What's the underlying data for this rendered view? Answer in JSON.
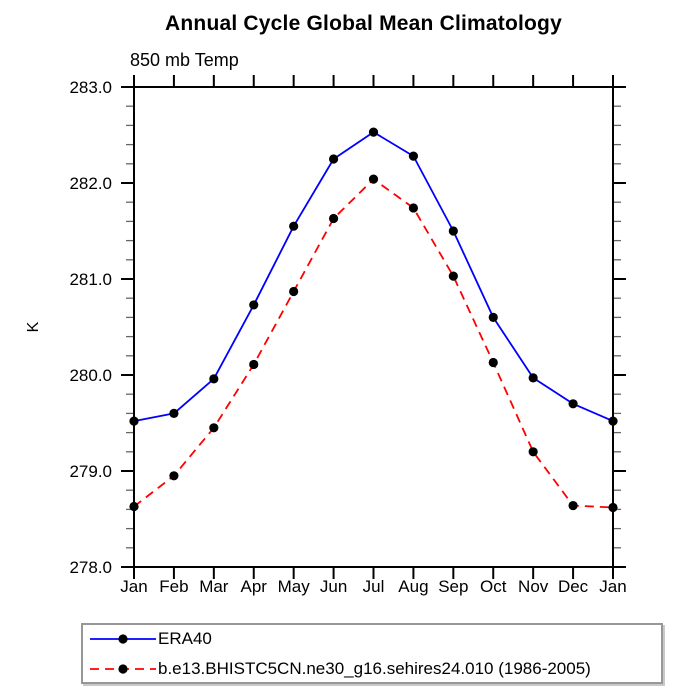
{
  "page": {
    "background": "#ffffff"
  },
  "chart_data": {
    "type": "line",
    "title": "Annual Cycle Global Mean Climatology",
    "subtitle": "850 mb Temp",
    "xlabel": "",
    "ylabel": "K",
    "x_tick_labels": [
      "Jan",
      "Feb",
      "Mar",
      "Apr",
      "May",
      "Jun",
      "Jul",
      "Aug",
      "Sep",
      "Oct",
      "Nov",
      "Dec",
      "Jan"
    ],
    "y_ticks": [
      278.0,
      279.0,
      280.0,
      281.0,
      282.0,
      283.0
    ],
    "y_tick_labels": [
      "278.0",
      "279.0",
      "280.0",
      "281.0",
      "282.0",
      "283.0"
    ],
    "ylim": [
      278.0,
      283.0
    ],
    "y_minor_step": 0.2,
    "grid": false,
    "legend_position": "bottom-left",
    "frame_color": "#000000",
    "series": [
      {
        "name": "ERA40",
        "color": "#0000ff",
        "line_style": "solid",
        "marker": "filled-circle",
        "marker_color": "#000000",
        "values": [
          279.52,
          279.6,
          279.96,
          280.73,
          281.55,
          282.25,
          282.53,
          282.28,
          281.5,
          280.6,
          279.97,
          279.7,
          279.52
        ]
      },
      {
        "name": "b.e13.BHISTC5CN.ne30_g16.sehires24.010 (1986-2005)",
        "color": "#ff0000",
        "line_style": "dashed",
        "marker": "filled-circle",
        "marker_color": "#000000",
        "values": [
          278.63,
          278.95,
          279.45,
          280.11,
          280.87,
          281.63,
          282.04,
          281.74,
          281.03,
          280.13,
          279.2,
          278.64,
          278.62
        ]
      }
    ]
  }
}
